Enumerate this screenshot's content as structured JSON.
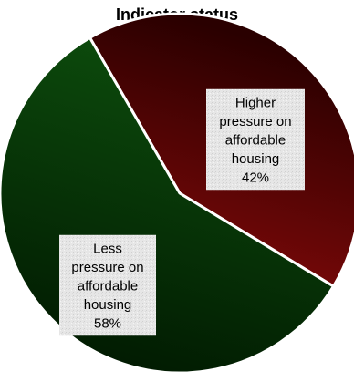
{
  "chart_data": {
    "type": "pie",
    "title": "Indicator status",
    "slices": [
      {
        "label_lines": [
          "Higher",
          "pressure on",
          "affordable",
          "housing"
        ],
        "value": 42,
        "value_text": "42%",
        "color_light": "#8a0a0a",
        "color_dark": "#2a0000"
      },
      {
        "label_lines": [
          "Less",
          "pressure on",
          "affordable",
          "housing"
        ],
        "value": 58,
        "value_text": "58%",
        "color_light": "#0c4a0c",
        "color_dark": "#001500"
      }
    ]
  }
}
